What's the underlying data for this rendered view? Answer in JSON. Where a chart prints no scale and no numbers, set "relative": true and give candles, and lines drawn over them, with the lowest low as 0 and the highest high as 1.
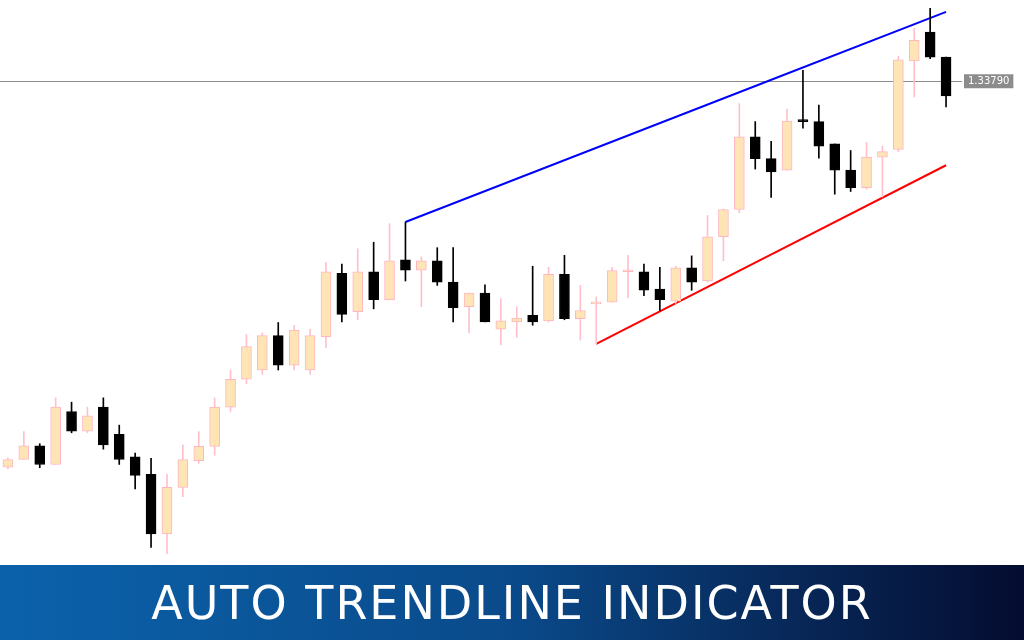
{
  "chart_data": {
    "type": "candlestick",
    "title": "AUTO TRENDLINE INDICATOR",
    "relative": true,
    "tick_labels": false,
    "categories": [
      null,
      null,
      null,
      null,
      null,
      null,
      null,
      null,
      null,
      null,
      null,
      null,
      null,
      null,
      null,
      null,
      null,
      null,
      null,
      null,
      null,
      null,
      null,
      null,
      null,
      null,
      null,
      null,
      null,
      null,
      null,
      null,
      null,
      null,
      null,
      null,
      null,
      null,
      null,
      null,
      null,
      null,
      null,
      null,
      null,
      null,
      null,
      null,
      null,
      null,
      null,
      null,
      null,
      null,
      null,
      null,
      null,
      null,
      null,
      null
    ],
    "ohlc": [
      [
        0.159,
        0.176,
        0.156,
        0.173
      ],
      [
        0.173,
        0.224,
        0.173,
        0.198
      ],
      [
        0.198,
        0.202,
        0.158,
        0.164
      ],
      [
        0.164,
        0.286,
        0.164,
        0.269
      ],
      [
        0.261,
        0.278,
        0.222,
        0.225
      ],
      [
        0.225,
        0.269,
        0.222,
        0.253
      ],
      [
        0.269,
        0.286,
        0.192,
        0.2
      ],
      [
        0.219,
        0.236,
        0.164,
        0.173
      ],
      [
        0.178,
        0.185,
        0.119,
        0.144
      ],
      [
        0.146,
        0.175,
        0.012,
        0.037
      ],
      [
        0.037,
        0.146,
        0,
        0.122
      ],
      [
        0.122,
        0.2,
        0.105,
        0.173
      ],
      [
        0.171,
        0.224,
        0.166,
        0.197
      ],
      [
        0.197,
        0.286,
        0.181,
        0.269
      ],
      [
        0.269,
        0.337,
        0.261,
        0.32
      ],
      [
        0.32,
        0.402,
        0.312,
        0.38
      ],
      [
        0.337,
        0.405,
        0.329,
        0.4
      ],
      [
        0.4,
        0.424,
        0.337,
        0.346
      ],
      [
        0.346,
        0.419,
        0.337,
        0.41
      ],
      [
        0.337,
        0.412,
        0.329,
        0.4
      ],
      [
        0.398,
        0.534,
        0.378,
        0.517
      ],
      [
        0.514,
        0.531,
        0.425,
        0.439
      ],
      [
        0.444,
        0.559,
        0.429,
        0.517
      ],
      [
        0.517,
        0.571,
        0.449,
        0.466
      ],
      [
        0.466,
        0.605,
        0.466,
        0.537
      ],
      [
        0.539,
        0.608,
        0.5,
        0.52
      ],
      [
        0.52,
        0.544,
        0.453,
        0.537
      ],
      [
        0.537,
        0.561,
        0.492,
        0.498
      ],
      [
        0.498,
        0.561,
        0.425,
        0.451
      ],
      [
        0.453,
        0.478,
        0.405,
        0.478
      ],
      [
        0.478,
        0.493,
        0.425,
        0.425
      ],
      [
        0.412,
        0.468,
        0.383,
        0.427
      ],
      [
        0.425,
        0.453,
        0.397,
        0.432
      ],
      [
        0.437,
        0.527,
        0.419,
        0.425
      ],
      [
        0.427,
        0.525,
        0.425,
        0.512
      ],
      [
        0.512,
        0.547,
        0.429,
        0.431
      ],
      [
        0.431,
        0.492,
        0.392,
        0.446
      ],
      [
        0.458,
        0.471,
        0.385,
        0.459
      ],
      [
        0.461,
        0.525,
        0.461,
        0.519
      ],
      [
        0.517,
        0.547,
        0.469,
        0.519
      ],
      [
        0.517,
        0.531,
        0.473,
        0.483
      ],
      [
        0.485,
        0.525,
        0.446,
        0.466
      ],
      [
        0.463,
        0.527,
        0.459,
        0.524
      ],
      [
        0.524,
        0.546,
        0.483,
        0.498
      ],
      [
        0.5,
        0.62,
        0.498,
        0.581
      ],
      [
        0.581,
        0.632,
        0.537,
        0.631
      ],
      [
        0.631,
        0.825,
        0.625,
        0.764
      ],
      [
        0.764,
        0.792,
        0.705,
        0.724
      ],
      [
        0.724,
        0.756,
        0.653,
        0.7
      ],
      [
        0.703,
        0.815,
        0.703,
        0.793
      ],
      [
        0.793,
        0.886,
        0.78,
        0.792
      ],
      [
        0.792,
        0.822,
        0.725,
        0.747
      ],
      [
        0.751,
        0.751,
        0.659,
        0.703
      ],
      [
        0.703,
        0.739,
        0.664,
        0.671
      ],
      [
        0.671,
        0.754,
        0.668,
        0.727
      ],
      [
        0.727,
        0.747,
        0.654,
        0.737
      ],
      [
        0.741,
        0.912,
        0.737,
        0.905
      ],
      [
        0.903,
        0.963,
        0.837,
        0.941
      ],
      [
        0.956,
        1,
        0.907,
        0.91
      ],
      [
        0.91,
        0.91,
        0.819,
        0.839
      ]
    ],
    "series": [
      {
        "type": "line",
        "color": "#0000ff",
        "values": [
          null,
          null,
          null,
          null,
          null,
          null,
          null,
          null,
          null,
          null,
          null,
          null,
          null,
          null,
          null,
          null,
          null,
          null,
          null,
          null,
          null,
          null,
          null,
          null,
          null,
          0.608,
          null,
          null,
          null,
          null,
          null,
          null,
          null,
          null,
          null,
          null,
          null,
          null,
          null,
          null,
          null,
          null,
          null,
          null,
          null,
          null,
          null,
          null,
          null,
          null,
          null,
          null,
          null,
          null,
          null,
          null,
          null,
          null,
          null,
          0.993
        ]
      },
      {
        "type": "line",
        "color": "#ff0000",
        "values": [
          null,
          null,
          null,
          null,
          null,
          null,
          null,
          null,
          null,
          null,
          null,
          null,
          null,
          null,
          null,
          null,
          null,
          null,
          null,
          null,
          null,
          null,
          null,
          null,
          null,
          null,
          null,
          null,
          null,
          null,
          null,
          null,
          null,
          null,
          null,
          null,
          null,
          0.385,
          null,
          null,
          null,
          null,
          null,
          null,
          null,
          null,
          null,
          null,
          null,
          null,
          null,
          null,
          null,
          null,
          null,
          null,
          null,
          null,
          null,
          0.712
        ]
      }
    ],
    "ref_lines": [
      {
        "axis": "y",
        "value": 0.866,
        "color": "#8c8c8c"
      }
    ],
    "annotations": [
      "1.33790"
    ]
  }
}
